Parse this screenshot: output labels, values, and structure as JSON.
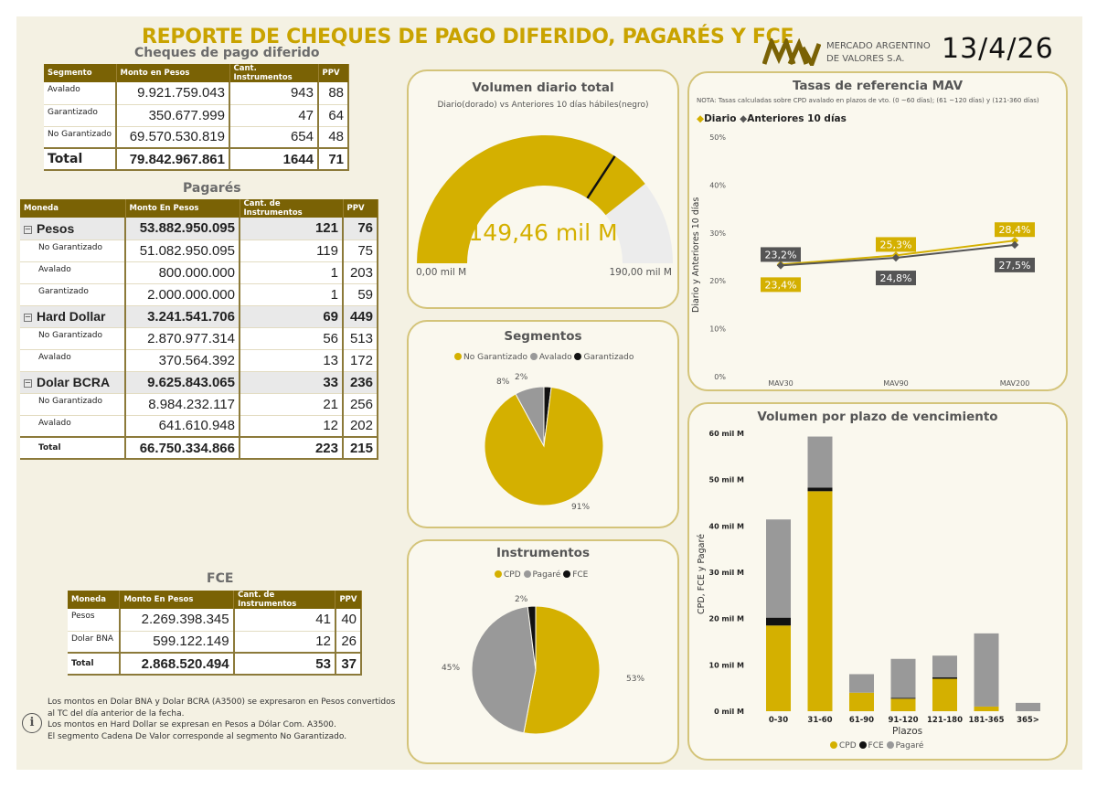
{
  "header": {
    "title": "REPORTE DE CHEQUES DE PAGO DIFERIDO, PAGARÉS Y FCE",
    "date": "13/4/26",
    "logo_line1": "MERCADO ARGENTINO",
    "logo_line2": "DE VALORES S.A."
  },
  "cheques": {
    "title": "Cheques de pago diferido",
    "columns": [
      "Segmento",
      "Monto en Pesos",
      "Cant. Instrumentos",
      "PPV"
    ],
    "rows": [
      {
        "segmento": "Avalado",
        "monto": "9.921.759.043",
        "cant": "943",
        "ppv": "88"
      },
      {
        "segmento": "Garantizado",
        "monto": "350.677.999",
        "cant": "47",
        "ppv": "64"
      },
      {
        "segmento": "No Garantizado",
        "monto": "69.570.530.819",
        "cant": "654",
        "ppv": "48"
      }
    ],
    "total": {
      "label": "Total",
      "monto": "79.842.967.861",
      "cant": "1644",
      "ppv": "71"
    }
  },
  "pagares": {
    "title": "Pagarés",
    "columns": [
      "Moneda",
      "Monto En Pesos",
      "Cant. de Instrumentos",
      "PPV"
    ],
    "groups": [
      {
        "name": "Pesos",
        "monto": "53.882.950.095",
        "cant": "121",
        "ppv": "76",
        "rows": [
          {
            "seg": "No Garantizado",
            "monto": "51.082.950.095",
            "cant": "119",
            "ppv": "75"
          },
          {
            "seg": "Avalado",
            "monto": "800.000.000",
            "cant": "1",
            "ppv": "203"
          },
          {
            "seg": "Garantizado",
            "monto": "2.000.000.000",
            "cant": "1",
            "ppv": "59"
          }
        ]
      },
      {
        "name": "Hard Dollar",
        "monto": "3.241.541.706",
        "cant": "69",
        "ppv": "449",
        "rows": [
          {
            "seg": "No Garantizado",
            "monto": "2.870.977.314",
            "cant": "56",
            "ppv": "513"
          },
          {
            "seg": "Avalado",
            "monto": "370.564.392",
            "cant": "13",
            "ppv": "172"
          }
        ]
      },
      {
        "name": "Dolar BCRA",
        "monto": "9.625.843.065",
        "cant": "33",
        "ppv": "236",
        "rows": [
          {
            "seg": "No Garantizado",
            "monto": "8.984.232.117",
            "cant": "21",
            "ppv": "256"
          },
          {
            "seg": "Avalado",
            "monto": "641.610.948",
            "cant": "12",
            "ppv": "202"
          }
        ]
      }
    ],
    "total": {
      "label": "Total",
      "monto": "66.750.334.866",
      "cant": "223",
      "ppv": "215"
    }
  },
  "fce": {
    "title": "FCE",
    "columns": [
      "Moneda",
      "Monto En Pesos",
      "Cant. de Instrumentos",
      "PPV"
    ],
    "rows": [
      {
        "moneda": "Pesos",
        "monto": "2.269.398.345",
        "cant": "41",
        "ppv": "40"
      },
      {
        "moneda": "Dolar BNA",
        "monto": "599.122.149",
        "cant": "12",
        "ppv": "26"
      }
    ],
    "total": {
      "label": "Total",
      "monto": "2.868.520.494",
      "cant": "53",
      "ppv": "37"
    }
  },
  "notes": [
    "Los montos en Dolar BNA y Dolar BCRA (A3500) se expresaron en Pesos convertidos al TC del día anterior de la fecha.",
    "Los montos en Hard Dollar se expresan en Pesos a Dólar Com. A3500.",
    "El segmento Cadena De Valor corresponde al segmento No Garantizado."
  ],
  "gauge": {
    "title": "Volumen diario total",
    "subtitle": "Diario(dorado) vs Anteriores 10 días hábiles(negro)",
    "value": 149.46,
    "value_label": "149,46 mil M",
    "min_label": "0,00 mil M",
    "max_label": "190,00 mil M",
    "max": 190,
    "target": 130,
    "fill_color": "#d4b000"
  },
  "segmentos": {
    "title": "Segmentos",
    "legend": [
      "No Garantizado",
      "Avalado",
      "Garantizado"
    ],
    "colors": [
      "#d4b000",
      "#999999",
      "#111111"
    ],
    "values": [
      91,
      8,
      2
    ],
    "labels": [
      "91%",
      "8%",
      "2%"
    ]
  },
  "instrumentos": {
    "title": "Instrumentos",
    "legend": [
      "CPD",
      "Pagaré",
      "FCE"
    ],
    "colors": [
      "#d4b000",
      "#999999",
      "#111111"
    ],
    "values": [
      53,
      45,
      2
    ],
    "labels": [
      "53%",
      "45%",
      "2%"
    ]
  },
  "tasas": {
    "title": "Tasas de referencia MAV",
    "note": "NOTA: Tasas calculadas sobre CPD avalado en plazos de vto. (0 ~60 días); (61 ~120 días) y (121-360 días)",
    "legend": [
      "Diario",
      "Anteriores 10 días"
    ],
    "ylabel": "Diario y Anteriores 10 días"
  },
  "volumen": {
    "title": "Volumen por plazo de vencimiento",
    "xlabel": "Plazos",
    "ylabel": "CPD, FCE y Pagaré",
    "legend": [
      "CPD",
      "FCE",
      "Pagaré"
    ]
  },
  "chart_data": [
    {
      "type": "line",
      "title": "Tasas de referencia MAV",
      "categories": [
        "MAV30",
        "MAV90",
        "MAV200"
      ],
      "series": [
        {
          "name": "Diario",
          "values": [
            23.4,
            25.3,
            28.4
          ],
          "labels": [
            "23,4%",
            "25,3%",
            "28,4%"
          ],
          "color": "#d4b000"
        },
        {
          "name": "Anteriores 10 días",
          "values": [
            23.2,
            24.8,
            27.5
          ],
          "labels": [
            "23,2%",
            "24,8%",
            "27,5%"
          ],
          "color": "#555555"
        }
      ],
      "ylim": [
        0,
        50
      ],
      "yticks": [
        "0%",
        "10%",
        "20%",
        "30%",
        "40%",
        "50%"
      ],
      "ylabel": "Diario y Anteriores 10 días"
    },
    {
      "type": "bar",
      "title": "Volumen por plazo de vencimiento",
      "categories": [
        "0-30",
        "31-60",
        "61-90",
        "91-120",
        "121-180",
        "181-365",
        "365>"
      ],
      "series": [
        {
          "name": "CPD",
          "values": [
            18.5,
            47.5,
            4,
            2.7,
            7,
            1,
            0
          ],
          "color": "#d4b000"
        },
        {
          "name": "FCE",
          "values": [
            1.7,
            0.8,
            0,
            0.2,
            0.3,
            0,
            0
          ],
          "color": "#111111"
        },
        {
          "name": "Pagaré",
          "values": [
            21.2,
            11,
            4,
            8.4,
            4.7,
            15.8,
            1.8
          ],
          "color": "#999999"
        }
      ],
      "ylim": [
        0,
        60
      ],
      "yticks": [
        "0 mil M",
        "10 mil M",
        "20 mil M",
        "30 mil M",
        "40 mil M",
        "50 mil M",
        "60 mil M"
      ],
      "xlabel": "Plazos",
      "ylabel": "CPD, FCE y Pagaré"
    }
  ]
}
